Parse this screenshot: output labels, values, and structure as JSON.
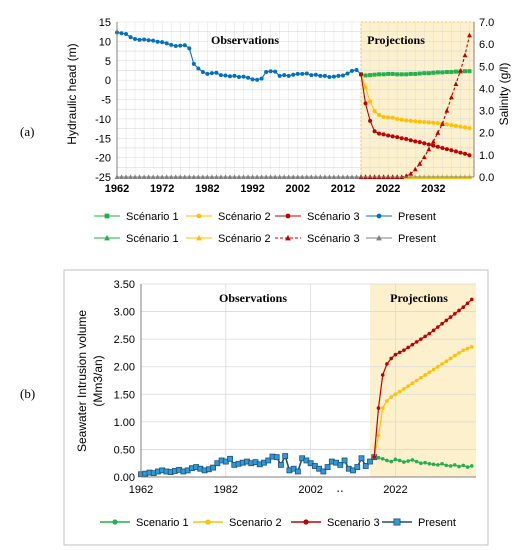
{
  "panel_a": {
    "label": "(a)",
    "observations_label": "Observations",
    "projections_label": "Projections",
    "legend_rows": [
      [
        {
          "name": "Scénario 1",
          "series_key": "s1",
          "color": "#22b14c",
          "marker": "square"
        },
        {
          "name": "Scénario 2",
          "series_key": "s2",
          "color": "#ffc000",
          "marker": "circle"
        },
        {
          "name": "Scénario 3",
          "series_key": "s3",
          "color": "#c00000",
          "marker": "circle"
        },
        {
          "name": "Present",
          "series_key": "present",
          "color": "#0070c0",
          "marker": "circle"
        }
      ],
      [
        {
          "name": "Scénario 1",
          "series_key": "sal_s1",
          "color": "#22b14c",
          "marker": "triangle"
        },
        {
          "name": "Scénario 2",
          "series_key": "sal_s2",
          "color": "#ffc000",
          "marker": "triangle"
        },
        {
          "name": "Scénario 3",
          "series_key": "sal_s3",
          "color": "#c00000",
          "marker": "triangle"
        },
        {
          "name": "Present",
          "series_key": "sal_present",
          "color": "#808080",
          "marker": "triangle"
        }
      ]
    ]
  },
  "panel_b": {
    "label": "(b)",
    "observations_label": "Observations",
    "projections_label": "Projections",
    "axis_break_mark": "‥",
    "legend": [
      {
        "name": "Scenario 1",
        "series_key": "s1",
        "color": "#22b14c",
        "marker": "circle"
      },
      {
        "name": "Scenario 2",
        "series_key": "s2",
        "color": "#ffc000",
        "marker": "circle"
      },
      {
        "name": "Scenario 3",
        "series_key": "s3",
        "color": "#c00000",
        "marker": "circle"
      },
      {
        "name": "Present",
        "series_key": "present",
        "color": "#1f4e79",
        "marker": "x"
      }
    ]
  },
  "colors": {
    "projection_band": "#fdf0cc",
    "projection_border": "#ffc000",
    "grid": "#d9d9d9",
    "axis": "#808080"
  },
  "chart_data": [
    {
      "type": "line",
      "title": "",
      "xlabel": "",
      "ylabel": "Hydraulic head (m)",
      "y2label": "Salinity (g/l)",
      "xlim": [
        1962,
        2041
      ],
      "ylim": [
        -25,
        15
      ],
      "y2lim": [
        0,
        7
      ],
      "xticks": [
        1962,
        1972,
        1982,
        1992,
        2002,
        2012,
        2022,
        2032
      ],
      "yticks": [
        15,
        10,
        5,
        0,
        -5,
        -10,
        -15,
        -20,
        -25
      ],
      "y2ticks": [
        "7.0",
        "6.0",
        "5.0",
        "4.0",
        "3.0",
        "2.0",
        "1.0",
        "0.0"
      ],
      "projection_start": 2016,
      "grid": true,
      "legend_position": "bottom",
      "series": [
        {
          "key": "present",
          "axis": "left",
          "color": "#0070c0",
          "x": [
            1962,
            1963,
            1964,
            1965,
            1966,
            1967,
            1968,
            1969,
            1970,
            1971,
            1972,
            1973,
            1974,
            1975,
            1976,
            1977,
            1978,
            1979,
            1980,
            1981,
            1982,
            1983,
            1984,
            1985,
            1986,
            1987,
            1988,
            1989,
            1990,
            1991,
            1992,
            1993,
            1994,
            1995,
            1996,
            1997,
            1998,
            1999,
            2000,
            2001,
            2002,
            2003,
            2004,
            2005,
            2006,
            2007,
            2008,
            2009,
            2010,
            2011,
            2012,
            2013,
            2014,
            2015,
            2016
          ],
          "y": [
            12.3,
            12.1,
            11.9,
            11.1,
            10.6,
            10.4,
            10.5,
            10.3,
            10.2,
            9.9,
            9.8,
            9.5,
            9.1,
            8.8,
            8.9,
            9.0,
            8.2,
            4.2,
            3.0,
            2.1,
            1.6,
            1.8,
            1.9,
            1.3,
            1.2,
            1.0,
            1.1,
            0.8,
            0.9,
            0.6,
            0.2,
            0.1,
            0.4,
            2.1,
            2.3,
            2.2,
            1.1,
            1.3,
            1.1,
            1.4,
            1.6,
            1.6,
            1.7,
            1.3,
            1.4,
            1.1,
            1.1,
            0.8,
            0.9,
            1.1,
            1.2,
            1.7,
            2.4,
            2.6,
            1.5
          ]
        },
        {
          "key": "s1",
          "axis": "left",
          "color": "#22b14c",
          "x": [
            2016,
            2017,
            2018,
            2019,
            2020,
            2021,
            2022,
            2023,
            2024,
            2025,
            2026,
            2027,
            2028,
            2029,
            2030,
            2031,
            2032,
            2033,
            2034,
            2035,
            2036,
            2037,
            2038,
            2039,
            2040
          ],
          "y": [
            1.5,
            1.2,
            1.3,
            1.4,
            1.5,
            1.5,
            1.6,
            1.6,
            1.5,
            1.5,
            1.5,
            1.6,
            1.6,
            1.7,
            1.8,
            1.8,
            1.9,
            2.0,
            2.0,
            2.1,
            2.1,
            2.2,
            2.2,
            2.3,
            2.3
          ]
        },
        {
          "key": "s2",
          "axis": "left",
          "color": "#ffc000",
          "x": [
            2016,
            2017,
            2018,
            2019,
            2020,
            2021,
            2022,
            2023,
            2024,
            2025,
            2026,
            2027,
            2028,
            2029,
            2030,
            2031,
            2032,
            2033,
            2034,
            2035,
            2036,
            2037,
            2038,
            2039,
            2040
          ],
          "y": [
            1.5,
            -2.0,
            -5.5,
            -8.0,
            -9.0,
            -9.5,
            -9.6,
            -9.7,
            -10.0,
            -10.2,
            -10.4,
            -10.5,
            -10.6,
            -10.7,
            -10.8,
            -10.9,
            -11.0,
            -11.1,
            -11.2,
            -11.4,
            -11.6,
            -11.8,
            -12.0,
            -12.2,
            -12.4
          ]
        },
        {
          "key": "s3",
          "axis": "left",
          "color": "#c00000",
          "x": [
            2016,
            2017,
            2018,
            2019,
            2020,
            2021,
            2022,
            2023,
            2024,
            2025,
            2026,
            2027,
            2028,
            2029,
            2030,
            2031,
            2032,
            2033,
            2034,
            2035,
            2036,
            2037,
            2038,
            2039,
            2040
          ],
          "y": [
            1.5,
            -6.0,
            -10.5,
            -13.2,
            -13.8,
            -14.0,
            -14.3,
            -14.5,
            -14.7,
            -15.0,
            -15.2,
            -15.5,
            -15.8,
            -16.0,
            -16.3,
            -16.6,
            -16.9,
            -17.2,
            -17.5,
            -17.8,
            -18.1,
            -18.4,
            -18.7,
            -19.0,
            -19.4
          ]
        },
        {
          "key": "sal_present",
          "axis": "right",
          "color": "#808080",
          "x": [
            1962,
            1963,
            1964,
            1965,
            1966,
            1967,
            1968,
            1969,
            1970,
            1971,
            1972,
            1973,
            1974,
            1975,
            1976,
            1977,
            1978,
            1979,
            1980,
            1981,
            1982,
            1983,
            1984,
            1985,
            1986,
            1987,
            1988,
            1989,
            1990,
            1991,
            1992,
            1993,
            1994,
            1995,
            1996,
            1997,
            1998,
            1999,
            2000,
            2001,
            2002,
            2003,
            2004,
            2005,
            2006,
            2007,
            2008,
            2009,
            2010,
            2011,
            2012,
            2013,
            2014,
            2015,
            2016
          ],
          "y": [
            0,
            0,
            0,
            0,
            0,
            0,
            0,
            0,
            0,
            0,
            0,
            0,
            0,
            0,
            0,
            0,
            0,
            0,
            0,
            0,
            0,
            0,
            0,
            0,
            0,
            0,
            0,
            0,
            0,
            0,
            0,
            0,
            0,
            0,
            0,
            0,
            0,
            0,
            0,
            0,
            0,
            0,
            0,
            0,
            0,
            0,
            0,
            0,
            0,
            0,
            0,
            0,
            0,
            0,
            0
          ]
        },
        {
          "key": "sal_s1",
          "axis": "right",
          "color": "#22b14c",
          "x": [
            2016,
            2017,
            2018,
            2019,
            2020,
            2021,
            2022,
            2023,
            2024,
            2025,
            2026,
            2027,
            2028,
            2029,
            2030,
            2031,
            2032,
            2033,
            2034,
            2035,
            2036,
            2037,
            2038,
            2039,
            2040
          ],
          "y": [
            0,
            0,
            0,
            0,
            0,
            0,
            0,
            0,
            0,
            0,
            0,
            0,
            0,
            0,
            0,
            0,
            0,
            0,
            0,
            0,
            0,
            0,
            0,
            0,
            0
          ]
        },
        {
          "key": "sal_s2",
          "axis": "right",
          "color": "#ffc000",
          "x": [
            2016,
            2017,
            2018,
            2019,
            2020,
            2021,
            2022,
            2023,
            2024,
            2025,
            2026,
            2027,
            2028,
            2029,
            2030,
            2031,
            2032,
            2033,
            2034,
            2035,
            2036,
            2037,
            2038,
            2039,
            2040
          ],
          "y": [
            0,
            0,
            0,
            0,
            0,
            0,
            0,
            0,
            0,
            0,
            0,
            0,
            0,
            0,
            0,
            0,
            0,
            0,
            0,
            0,
            0,
            0,
            0,
            0,
            0
          ]
        },
        {
          "key": "sal_s3",
          "axis": "right",
          "color": "#c00000",
          "dashed": true,
          "x": [
            2016,
            2017,
            2018,
            2019,
            2020,
            2021,
            2022,
            2023,
            2024,
            2025,
            2026,
            2027,
            2028,
            2029,
            2030,
            2031,
            2032,
            2033,
            2034,
            2035,
            2036,
            2037,
            2038,
            2039,
            2040
          ],
          "y": [
            0,
            0,
            0,
            0,
            0,
            0,
            0,
            0,
            0,
            0,
            0.05,
            0.15,
            0.35,
            0.6,
            0.9,
            1.25,
            1.6,
            2.0,
            2.4,
            3.0,
            3.6,
            4.2,
            4.8,
            5.5,
            6.4
          ]
        }
      ]
    },
    {
      "type": "line",
      "title": "",
      "xlabel": "",
      "ylabel": "Seawater Intrusion volume (Mm3/an)",
      "xlim": [
        1962,
        2041
      ],
      "ylim": [
        0,
        3.5
      ],
      "xticks": [
        1962,
        1982,
        2002,
        2022
      ],
      "yticks": [
        "3.50",
        "3.00",
        "2.50",
        "2.00",
        "1.50",
        "1.00",
        "0.50",
        "0.00"
      ],
      "projection_start": 2016,
      "grid": true,
      "legend_position": "bottom",
      "series": [
        {
          "key": "present",
          "color": "#1f4e79",
          "x": [
            1962,
            1963,
            1964,
            1965,
            1966,
            1967,
            1968,
            1969,
            1970,
            1971,
            1972,
            1973,
            1974,
            1975,
            1976,
            1977,
            1978,
            1979,
            1980,
            1981,
            1982,
            1983,
            1984,
            1985,
            1986,
            1987,
            1988,
            1989,
            1990,
            1991,
            1992,
            1993,
            1994,
            1995,
            1996,
            1997,
            1998,
            1999,
            2000,
            2001,
            2002,
            2003,
            2004,
            2005,
            2006,
            2007,
            2008,
            2009,
            2010,
            2011,
            2012,
            2013,
            2014,
            2015,
            2016,
            2017
          ],
          "y": [
            0.05,
            0.06,
            0.08,
            0.07,
            0.1,
            0.12,
            0.1,
            0.09,
            0.11,
            0.13,
            0.1,
            0.12,
            0.16,
            0.18,
            0.15,
            0.12,
            0.14,
            0.17,
            0.25,
            0.3,
            0.28,
            0.33,
            0.22,
            0.24,
            0.26,
            0.28,
            0.25,
            0.27,
            0.23,
            0.26,
            0.3,
            0.37,
            0.36,
            0.22,
            0.38,
            0.12,
            0.15,
            0.1,
            0.34,
            0.3,
            0.25,
            0.2,
            0.15,
            0.1,
            0.18,
            0.28,
            0.26,
            0.22,
            0.3,
            0.15,
            0.12,
            0.18,
            0.34,
            0.2,
            0.28,
            0.36
          ]
        },
        {
          "key": "s1",
          "color": "#22b14c",
          "x": [
            2017,
            2018,
            2019,
            2020,
            2021,
            2022,
            2023,
            2024,
            2025,
            2026,
            2027,
            2028,
            2029,
            2030,
            2031,
            2032,
            2033,
            2034,
            2035,
            2036,
            2037,
            2038,
            2039,
            2040
          ],
          "y": [
            0.36,
            0.35,
            0.33,
            0.3,
            0.28,
            0.32,
            0.3,
            0.27,
            0.29,
            0.31,
            0.28,
            0.25,
            0.26,
            0.24,
            0.23,
            0.22,
            0.24,
            0.21,
            0.2,
            0.22,
            0.19,
            0.21,
            0.18,
            0.2
          ]
        },
        {
          "key": "s2",
          "color": "#ffc000",
          "x": [
            2017,
            2018,
            2019,
            2020,
            2021,
            2022,
            2023,
            2024,
            2025,
            2026,
            2027,
            2028,
            2029,
            2030,
            2031,
            2032,
            2033,
            2034,
            2035,
            2036,
            2037,
            2038,
            2039,
            2040
          ],
          "y": [
            0.36,
            0.75,
            1.25,
            1.38,
            1.45,
            1.5,
            1.55,
            1.6,
            1.65,
            1.7,
            1.75,
            1.8,
            1.85,
            1.9,
            1.95,
            2.0,
            2.05,
            2.1,
            2.15,
            2.2,
            2.25,
            2.3,
            2.33,
            2.36
          ]
        },
        {
          "key": "s3",
          "color": "#c00000",
          "x": [
            2017,
            2018,
            2019,
            2020,
            2021,
            2022,
            2023,
            2024,
            2025,
            2026,
            2027,
            2028,
            2029,
            2030,
            2031,
            2032,
            2033,
            2034,
            2035,
            2036,
            2037,
            2038,
            2039,
            2040
          ],
          "y": [
            0.36,
            1.25,
            1.85,
            2.05,
            2.15,
            2.22,
            2.26,
            2.3,
            2.35,
            2.4,
            2.45,
            2.5,
            2.55,
            2.6,
            2.66,
            2.72,
            2.78,
            2.84,
            2.9,
            2.96,
            3.02,
            3.08,
            3.15,
            3.22
          ]
        }
      ]
    }
  ]
}
